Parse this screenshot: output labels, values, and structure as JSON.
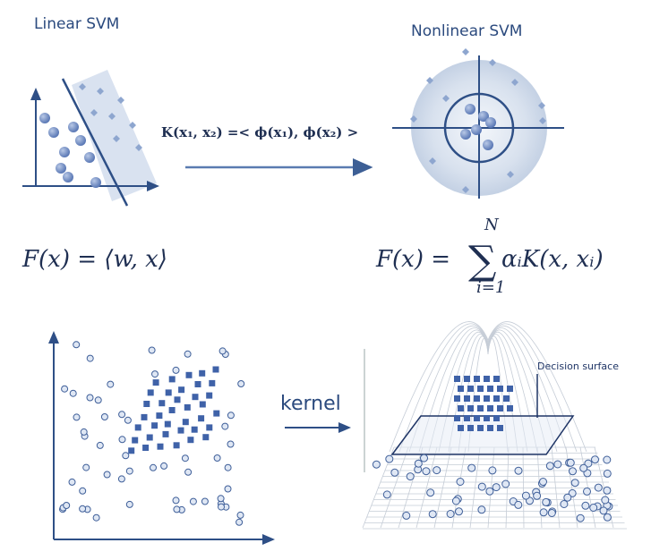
{
  "header": {
    "left_title": "Linear SVM",
    "right_title": "Nonlinear SVM"
  },
  "formulas": {
    "kernel": "K(x₁, x₂) =< ϕ(x₁), ϕ(x₂) >",
    "linear": "F(x) = ⟨w, x⟩",
    "nonlinear": "F(x) = ",
    "nonlinear_sum": "∑",
    "nonlinear_term": "αᵢK(x, xᵢ)",
    "sum_upper": "N",
    "sum_lower": "i=1"
  },
  "bottom": {
    "arrow_label": "kernel",
    "surface_label": "Decision surface"
  }
}
